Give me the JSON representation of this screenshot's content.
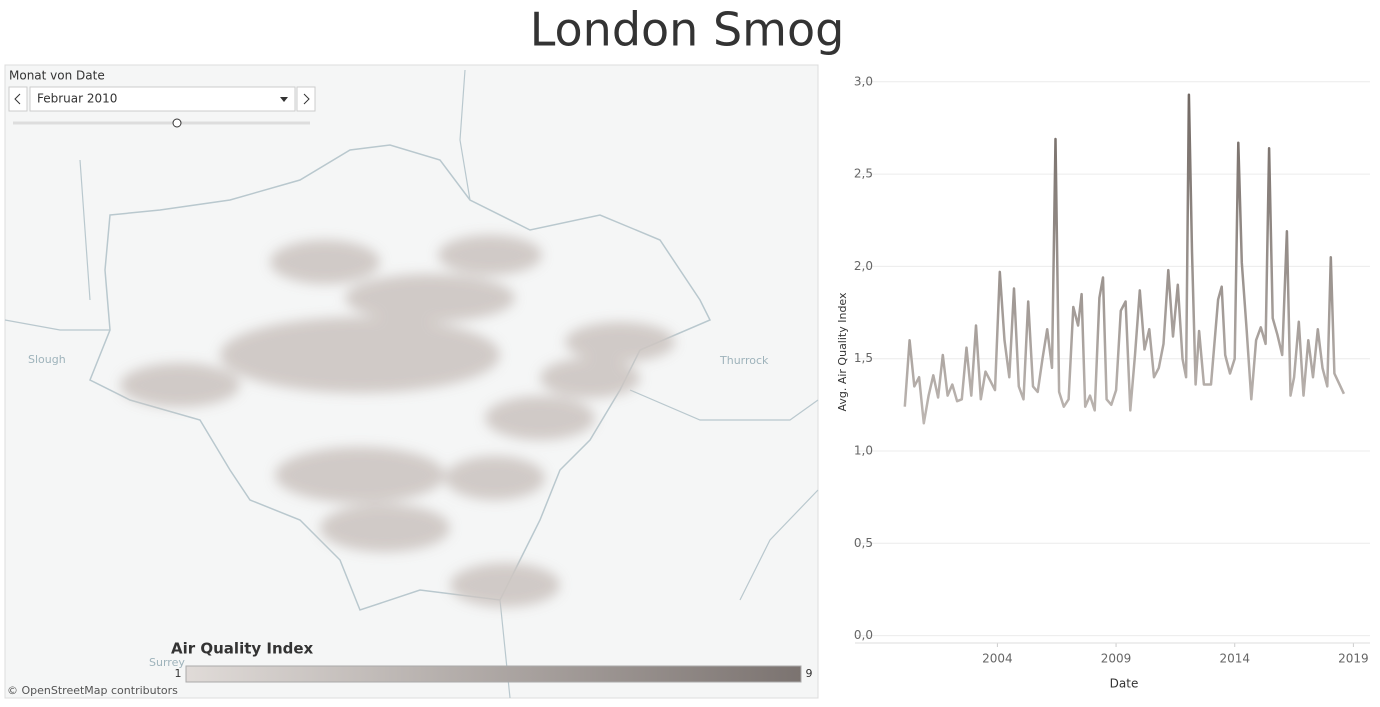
{
  "title": "London Smog",
  "filter": {
    "label": "Monat von Date",
    "selected": "Februar 2010"
  },
  "map": {
    "places": [
      "Slough",
      "Thurrock",
      "Surrey"
    ],
    "attribution": "© OpenStreetMap contributors"
  },
  "legend": {
    "title": "Air Quality Index",
    "min": 1,
    "max": 9,
    "colors": [
      "#e0dbd8",
      "#7b7370"
    ]
  },
  "chart_data": {
    "type": "line",
    "x_label": "Date",
    "y_label": "Avg. Air Quality Index",
    "colors": [
      "#d9d3cf",
      "#6e6560"
    ],
    "x": [
      2000.1,
      2000.3,
      2000.5,
      2000.7,
      2000.9,
      2001.1,
      2001.3,
      2001.5,
      2001.7,
      2001.9,
      2002.1,
      2002.3,
      2002.5,
      2002.7,
      2002.9,
      2003.1,
      2003.3,
      2003.5,
      2003.7,
      2003.9,
      2004.1,
      2004.3,
      2004.5,
      2004.7,
      2004.9,
      2005.1,
      2005.3,
      2005.5,
      2005.7,
      2005.9,
      2006.1,
      2006.3,
      2006.45,
      2006.6,
      2006.8,
      2007.0,
      2007.2,
      2007.4,
      2007.55,
      2007.7,
      2007.9,
      2008.1,
      2008.3,
      2008.45,
      2008.6,
      2008.8,
      2009.0,
      2009.2,
      2009.4,
      2009.6,
      2009.8,
      2010.0,
      2010.2,
      2010.4,
      2010.6,
      2010.8,
      2011.0,
      2011.2,
      2011.4,
      2011.6,
      2011.8,
      2011.95,
      2012.07,
      2012.2,
      2012.35,
      2012.5,
      2012.7,
      2013.0,
      2013.3,
      2013.45,
      2013.6,
      2013.8,
      2014.0,
      2014.15,
      2014.3,
      2014.5,
      2014.7,
      2014.9,
      2015.1,
      2015.3,
      2015.45,
      2015.6,
      2015.8,
      2016.0,
      2016.2,
      2016.35,
      2016.5,
      2016.7,
      2016.9,
      2017.1,
      2017.3,
      2017.5,
      2017.7,
      2017.9,
      2018.05,
      2018.2,
      2018.6
    ],
    "values": [
      1.24,
      1.6,
      1.35,
      1.4,
      1.15,
      1.3,
      1.41,
      1.29,
      1.52,
      1.3,
      1.36,
      1.27,
      1.28,
      1.56,
      1.3,
      1.68,
      1.28,
      1.43,
      1.38,
      1.33,
      1.97,
      1.6,
      1.4,
      1.88,
      1.35,
      1.28,
      1.81,
      1.35,
      1.32,
      1.5,
      1.66,
      1.45,
      2.69,
      1.32,
      1.24,
      1.28,
      1.78,
      1.68,
      1.85,
      1.24,
      1.3,
      1.22,
      1.83,
      1.94,
      1.28,
      1.25,
      1.33,
      1.76,
      1.81,
      1.22,
      1.52,
      1.87,
      1.55,
      1.66,
      1.4,
      1.45,
      1.58,
      1.98,
      1.62,
      1.9,
      1.5,
      1.4,
      2.93,
      2.08,
      1.36,
      1.65,
      1.36,
      1.36,
      1.82,
      1.89,
      1.52,
      1.42,
      1.5,
      2.67,
      2.02,
      1.66,
      1.28,
      1.6,
      1.67,
      1.58,
      2.64,
      1.72,
      1.63,
      1.52,
      2.19,
      1.3,
      1.4,
      1.7,
      1.3,
      1.6,
      1.4,
      1.66,
      1.45,
      1.35,
      2.05,
      1.42,
      1.31
    ],
    "xlim": [
      1998.0,
      2019.7
    ],
    "xticks": [
      2004,
      2009,
      2014,
      2019
    ],
    "ylim": [
      -0.04,
      3.08
    ],
    "yticks": [
      {
        "value": 0,
        "label": "0,0"
      },
      {
        "value": 0.5,
        "label": "0,5"
      },
      {
        "value": 1,
        "label": "1,0"
      },
      {
        "value": 1.5,
        "label": "1,5"
      },
      {
        "value": 2,
        "label": "2,0"
      },
      {
        "value": 2.5,
        "label": "2,5"
      },
      {
        "value": 3,
        "label": "3,0"
      }
    ],
    "grid": true
  }
}
